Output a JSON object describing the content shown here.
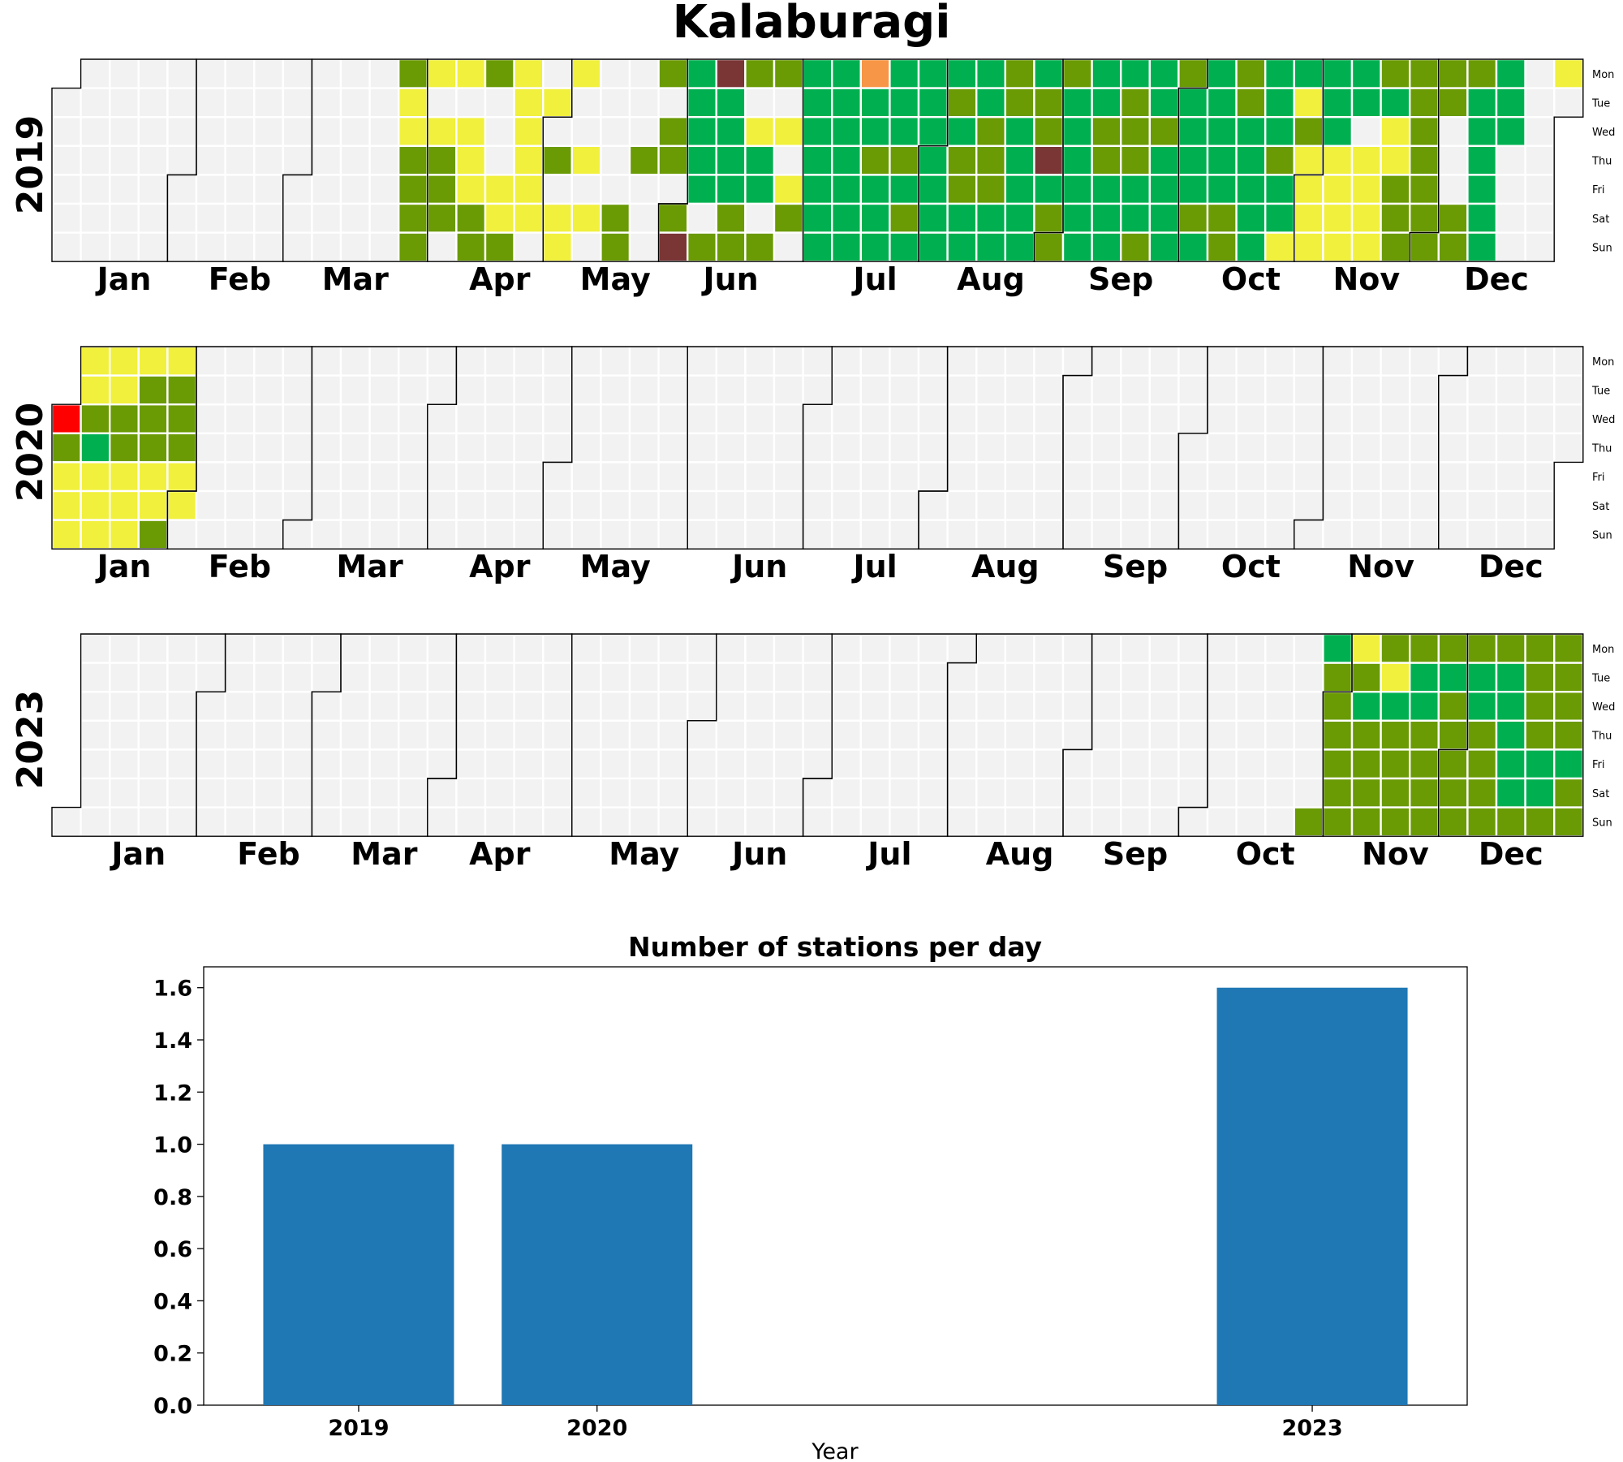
{
  "figure": {
    "title": "Kalaburagi",
    "weekday_labels": [
      "Mon",
      "Tue",
      "Wed",
      "Thu",
      "Fri",
      "Sat",
      "Sun"
    ]
  },
  "colors": {
    "empty": "#f2f2f2",
    "yellow": "#f1f03c",
    "olive": "#6a9a04",
    "green": "#00b050",
    "orange": "#f79646",
    "maroon": "#7a3535",
    "red": "#ff0000",
    "bar": "#1f77b4",
    "grid_line": "#ffffff"
  },
  "chart_data": [
    {
      "type": "heatmap",
      "description_kind": "calendar",
      "year": "2019",
      "month_labels": [
        "Jan",
        "Feb",
        "Mar",
        "Apr",
        "May",
        "Jun",
        "Jul",
        "Aug",
        "Sep",
        "Oct",
        "Nov",
        "Dec"
      ],
      "day_categories": {
        "yellow": [
          "03-26",
          "03-27",
          "03-28",
          "03-29",
          "03-30",
          "03-31",
          "04-01",
          "04-03",
          "04-08",
          "04-10",
          "04-11",
          "04-12",
          "04-13",
          "04-14",
          "04-15",
          "04-19",
          "04-20",
          "04-22",
          "04-23",
          "04-24",
          "04-25",
          "04-26",
          "04-27",
          "04-30",
          "05-04",
          "05-05",
          "05-06",
          "05-09",
          "05-11",
          "06-19",
          "06-26",
          "06-28",
          "07-01",
          "10-27",
          "10-28",
          "10-29",
          "10-31",
          "11-01",
          "11-02",
          "11-03",
          "11-04",
          "11-05",
          "11-06",
          "11-07",
          "11-08",
          "11-09",
          "11-10",
          "11-14",
          "11-15",
          "11-16",
          "11-17",
          "11-20",
          "11-21",
          "12-07",
          "12-09",
          "12-30"
        ],
        "olive": [
          "03-25",
          "03-28",
          "03-29",
          "03-30",
          "03-31",
          "04-04",
          "04-05",
          "04-06",
          "04-13",
          "04-14",
          "04-15",
          "04-21",
          "05-02",
          "05-18",
          "05-19",
          "05-23",
          "05-27",
          "05-29",
          "05-30",
          "06-01",
          "06-02",
          "06-03",
          "06-04",
          "06-09",
          "06-10",
          "06-13",
          "06-14",
          "06-15",
          "06-16",
          "06-17",
          "06-20",
          "06-23",
          "06-24",
          "06-29",
          "07-18",
          "07-25",
          "07-27",
          "08-06",
          "08-08",
          "08-09",
          "08-14",
          "08-15",
          "08-16",
          "08-19",
          "08-20",
          "08-27",
          "08-28",
          "08-31",
          "09-01",
          "09-02",
          "09-11",
          "09-12",
          "09-17",
          "09-18",
          "09-19",
          "09-22",
          "09-25",
          "09-30",
          "10-05",
          "10-12",
          "10-13",
          "10-14",
          "10-15",
          "10-24",
          "10-30",
          "11-18",
          "11-22",
          "11-23",
          "11-24",
          "11-25",
          "11-26",
          "11-27",
          "11-28",
          "11-29",
          "11-30",
          "12-01",
          "12-02",
          "12-03",
          "12-07",
          "12-08",
          "12-09"
        ],
        "green": [
          "06-03",
          "06-04",
          "06-05",
          "06-06",
          "06-07",
          "06-11",
          "06-12",
          "06-13",
          "06-14",
          "06-20",
          "06-21",
          "07-01",
          "07-02",
          "07-03",
          "07-04",
          "07-05",
          "07-06",
          "07-07",
          "07-08",
          "07-09",
          "07-10",
          "07-11",
          "07-12",
          "07-13",
          "07-14",
          "07-15",
          "07-16",
          "07-17",
          "07-19",
          "07-20",
          "07-21",
          "07-22",
          "07-23",
          "07-24",
          "07-26",
          "07-28",
          "07-29",
          "07-30",
          "07-31",
          "08-01",
          "08-02",
          "08-03",
          "08-04",
          "08-05",
          "08-07",
          "08-10",
          "08-11",
          "08-12",
          "08-13",
          "08-17",
          "08-18",
          "08-21",
          "08-22",
          "08-23",
          "08-24",
          "08-25",
          "08-26",
          "08-29",
          "08-30",
          "09-03",
          "09-04",
          "09-05",
          "09-06",
          "09-07",
          "09-08",
          "09-09",
          "09-10",
          "09-13",
          "09-14",
          "09-15",
          "09-16",
          "09-20",
          "09-21",
          "09-23",
          "09-24",
          "09-26",
          "09-27",
          "09-28",
          "09-29",
          "10-01",
          "10-02",
          "10-03",
          "10-04",
          "10-06",
          "10-07",
          "10-08",
          "10-09",
          "10-10",
          "10-11",
          "10-16",
          "10-17",
          "10-18",
          "10-19",
          "10-20",
          "10-21",
          "10-22",
          "10-23",
          "10-25",
          "10-26",
          "10-28",
          "11-04",
          "11-05",
          "11-06",
          "11-11",
          "11-12",
          "11-19",
          "12-10",
          "12-11",
          "12-12",
          "12-13",
          "12-14",
          "12-15",
          "12-16",
          "12-17",
          "12-18"
        ],
        "orange": [
          "07-15"
        ],
        "maroon": [
          "06-02",
          "06-10",
          "08-29"
        ],
        "red": []
      }
    },
    {
      "type": "heatmap",
      "description_kind": "calendar",
      "year": "2020",
      "month_labels": [
        "Jan",
        "Feb",
        "Mar",
        "Apr",
        "May",
        "Jun",
        "Jul",
        "Aug",
        "Sep",
        "Oct",
        "Nov",
        "Dec"
      ],
      "day_categories": {
        "yellow": [
          "01-03",
          "01-04",
          "01-05",
          "01-06",
          "01-07",
          "01-10",
          "01-11",
          "01-12",
          "01-13",
          "01-14",
          "01-17",
          "01-18",
          "01-19",
          "01-20",
          "01-24",
          "01-25",
          "01-27",
          "01-31",
          "02-01"
        ],
        "olive": [
          "01-02",
          "01-08",
          "01-09",
          "01-15",
          "01-16",
          "01-21",
          "01-22",
          "01-23",
          "01-26",
          "01-28",
          "01-29",
          "01-30"
        ],
        "green": [
          "01-09"
        ],
        "orange": [],
        "maroon": [],
        "red": [
          "01-01"
        ]
      }
    },
    {
      "type": "heatmap",
      "description_kind": "calendar",
      "year": "2023",
      "month_labels": [
        "Jan",
        "Feb",
        "Mar",
        "Apr",
        "May",
        "Jun",
        "Jul",
        "Aug",
        "Sep",
        "Oct",
        "Nov",
        "Dec"
      ],
      "day_categories": {
        "yellow": [
          "11-06",
          "11-14"
        ],
        "olive": [
          "10-29",
          "10-31",
          "11-01",
          "11-02",
          "11-03",
          "11-04",
          "11-05",
          "11-07",
          "11-09",
          "11-10",
          "11-11",
          "11-12",
          "11-13",
          "11-16",
          "11-17",
          "11-18",
          "11-19",
          "11-20",
          "11-23",
          "11-24",
          "11-25",
          "11-26",
          "11-27",
          "11-29",
          "11-30",
          "12-01",
          "12-02",
          "12-03",
          "12-04",
          "12-06",
          "12-07",
          "12-08",
          "12-09",
          "12-10",
          "12-11",
          "12-12",
          "12-13",
          "12-14",
          "12-15",
          "12-16",
          "12-17",
          "12-18",
          "12-19",
          "12-20",
          "12-21",
          "12-22",
          "12-23",
          "12-24",
          "12-25",
          "12-26",
          "12-27",
          "12-28",
          "12-29",
          "12-30",
          "12-31"
        ],
        "green": [
          "10-30",
          "11-08",
          "11-15",
          "11-21",
          "11-22",
          "11-28",
          "12-05",
          "12-06",
          "12-12",
          "12-13",
          "12-14",
          "12-15",
          "12-16",
          "12-22",
          "12-23",
          "12-29"
        ],
        "orange": [],
        "maroon": [],
        "red": []
      }
    },
    {
      "type": "bar",
      "title": "Number of stations per day",
      "xlabel": "Year",
      "ylabel": "",
      "categories": [
        "2019",
        "2020",
        "2023"
      ],
      "x": [
        2019,
        2020,
        2023
      ],
      "values": [
        1.0,
        1.0,
        1.6
      ],
      "xlim": [
        2018.35,
        2023.65
      ],
      "ylim": [
        0,
        1.68
      ],
      "yticks": [
        "0.0",
        "0.2",
        "0.4",
        "0.6",
        "0.8",
        "1.0",
        "1.2",
        "1.4",
        "1.6"
      ],
      "grid": false
    }
  ]
}
